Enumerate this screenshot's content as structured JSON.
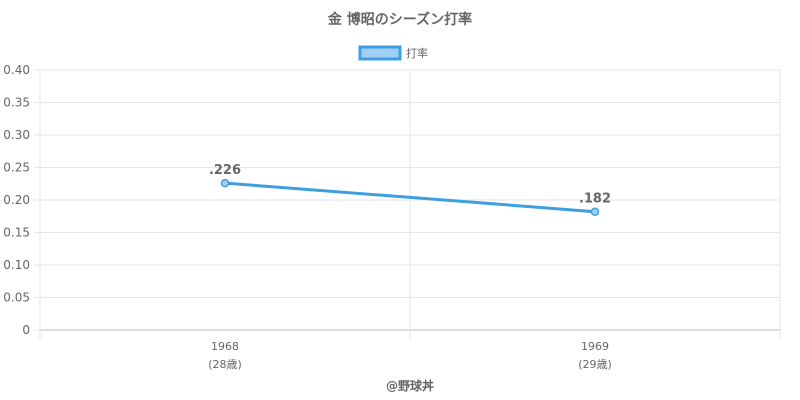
{
  "chart_data": {
    "type": "line",
    "title": "金 博昭のシーズン打率",
    "x": [
      "1968",
      "1969"
    ],
    "x_sublabels": [
      "(28歳)",
      "(29歳)"
    ],
    "series": [
      {
        "name": "打率",
        "values": [
          0.226,
          0.182
        ],
        "value_labels": [
          ".226",
          ".182"
        ]
      }
    ],
    "ylim": [
      0,
      0.4
    ],
    "yticks": [
      "0",
      "0.05",
      "0.10",
      "0.15",
      "0.20",
      "0.25",
      "0.30",
      "0.35",
      "0.40"
    ],
    "grid": true,
    "legend_position": "top-center",
    "credit": "@野球丼",
    "colors": {
      "line": "#3d9fe0",
      "legend_fill": "#9fcff2",
      "grid": "#e6e6e6",
      "text": "#666666"
    }
  }
}
